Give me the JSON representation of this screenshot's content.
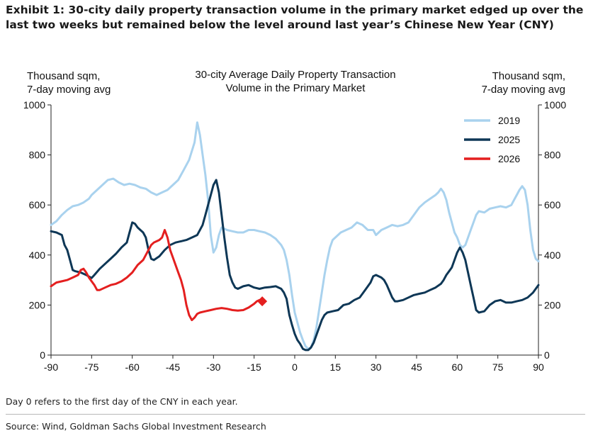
{
  "exhibit": {
    "title": "Exhibit 1: 30-city daily property transaction volume in the primary market edged up over the last two weeks but remained below the level around last year’s Chinese New Year (CNY)",
    "note": "Day 0 refers to the first day of the CNY in each year.",
    "source": "Source: Wind, Goldman Sachs Global Investment Research"
  },
  "chart_data": {
    "type": "line",
    "title": "30-city Average Daily Property Transaction Volume in the Primary Market",
    "title_lines": [
      "30-city Average Daily Property Transaction",
      "Volume in the Primary Market"
    ],
    "ylabel_left_lines": [
      "Thousand sqm,",
      "7-day moving avg"
    ],
    "ylabel_right_lines": [
      "Thousand sqm,",
      "7-day moving avg"
    ],
    "xlim": [
      -90,
      90
    ],
    "ylim": [
      0,
      1000
    ],
    "xticks": [
      -90,
      -75,
      -60,
      -45,
      -30,
      -15,
      0,
      15,
      30,
      45,
      60,
      75,
      90
    ],
    "xtick_labels": [
      "-90",
      "-75",
      "-60",
      "-45",
      "-30",
      "-15",
      "0",
      "15",
      "30",
      "45",
      "60",
      "75",
      "90"
    ],
    "yticks": [
      0,
      200,
      400,
      600,
      800,
      1000
    ],
    "ytick_labels": [
      "0",
      "200",
      "400",
      "600",
      "800",
      "1000"
    ],
    "legend_position": "top-right",
    "grid": false,
    "series": [
      {
        "name": "2019",
        "color": "#a9d2ee",
        "points": [
          [
            -90,
            520
          ],
          [
            -88,
            535
          ],
          [
            -86,
            560
          ],
          [
            -84,
            580
          ],
          [
            -82,
            595
          ],
          [
            -80,
            600
          ],
          [
            -78,
            610
          ],
          [
            -76,
            625
          ],
          [
            -75,
            640
          ],
          [
            -73,
            660
          ],
          [
            -71,
            680
          ],
          [
            -69,
            700
          ],
          [
            -67,
            705
          ],
          [
            -65,
            690
          ],
          [
            -63,
            680
          ],
          [
            -61,
            685
          ],
          [
            -59,
            680
          ],
          [
            -57,
            670
          ],
          [
            -55,
            665
          ],
          [
            -53,
            650
          ],
          [
            -51,
            640
          ],
          [
            -49,
            650
          ],
          [
            -47,
            660
          ],
          [
            -45,
            680
          ],
          [
            -43,
            700
          ],
          [
            -41,
            740
          ],
          [
            -39,
            780
          ],
          [
            -37,
            850
          ],
          [
            -36,
            930
          ],
          [
            -35,
            880
          ],
          [
            -34,
            800
          ],
          [
            -33,
            720
          ],
          [
            -32,
            620
          ],
          [
            -31,
            480
          ],
          [
            -30,
            410
          ],
          [
            -29,
            430
          ],
          [
            -28,
            480
          ],
          [
            -27,
            510
          ],
          [
            -25,
            500
          ],
          [
            -23,
            495
          ],
          [
            -21,
            490
          ],
          [
            -19,
            490
          ],
          [
            -17,
            500
          ],
          [
            -15,
            500
          ],
          [
            -13,
            495
          ],
          [
            -11,
            490
          ],
          [
            -9,
            480
          ],
          [
            -7,
            465
          ],
          [
            -5,
            440
          ],
          [
            -4,
            420
          ],
          [
            -3,
            380
          ],
          [
            -2,
            320
          ],
          [
            -1,
            240
          ],
          [
            0,
            170
          ],
          [
            1,
            130
          ],
          [
            2,
            90
          ],
          [
            3,
            60
          ],
          [
            4,
            35
          ],
          [
            5,
            25
          ],
          [
            6,
            30
          ],
          [
            7,
            60
          ],
          [
            8,
            110
          ],
          [
            9,
            180
          ],
          [
            10,
            250
          ],
          [
            11,
            320
          ],
          [
            12,
            380
          ],
          [
            13,
            430
          ],
          [
            14,
            460
          ],
          [
            15,
            470
          ],
          [
            17,
            490
          ],
          [
            19,
            500
          ],
          [
            21,
            510
          ],
          [
            23,
            530
          ],
          [
            25,
            520
          ],
          [
            27,
            500
          ],
          [
            29,
            500
          ],
          [
            30,
            480
          ],
          [
            32,
            500
          ],
          [
            34,
            510
          ],
          [
            36,
            520
          ],
          [
            38,
            515
          ],
          [
            40,
            520
          ],
          [
            42,
            530
          ],
          [
            44,
            560
          ],
          [
            46,
            590
          ],
          [
            48,
            610
          ],
          [
            50,
            625
          ],
          [
            52,
            640
          ],
          [
            53,
            650
          ],
          [
            54,
            665
          ],
          [
            55,
            650
          ],
          [
            56,
            620
          ],
          [
            57,
            570
          ],
          [
            58,
            530
          ],
          [
            59,
            490
          ],
          [
            60,
            470
          ],
          [
            61,
            440
          ],
          [
            62,
            430
          ],
          [
            63,
            440
          ],
          [
            64,
            470
          ],
          [
            65,
            500
          ],
          [
            66,
            530
          ],
          [
            67,
            560
          ],
          [
            68,
            575
          ],
          [
            70,
            570
          ],
          [
            72,
            585
          ],
          [
            74,
            590
          ],
          [
            76,
            595
          ],
          [
            78,
            590
          ],
          [
            80,
            600
          ],
          [
            81,
            620
          ],
          [
            82,
            640
          ],
          [
            83,
            660
          ],
          [
            84,
            675
          ],
          [
            85,
            660
          ],
          [
            86,
            600
          ],
          [
            87,
            500
          ],
          [
            88,
            420
          ],
          [
            89,
            385
          ],
          [
            90,
            375
          ]
        ]
      },
      {
        "name": "2025",
        "color": "#0e3756",
        "points": [
          [
            -90,
            495
          ],
          [
            -88,
            490
          ],
          [
            -86,
            480
          ],
          [
            -85,
            440
          ],
          [
            -84,
            420
          ],
          [
            -83,
            380
          ],
          [
            -82,
            340
          ],
          [
            -81,
            335
          ],
          [
            -79,
            330
          ],
          [
            -77,
            320
          ],
          [
            -75,
            308
          ],
          [
            -74,
            320
          ],
          [
            -72,
            345
          ],
          [
            -70,
            365
          ],
          [
            -68,
            385
          ],
          [
            -66,
            405
          ],
          [
            -64,
            430
          ],
          [
            -62,
            450
          ],
          [
            -61,
            490
          ],
          [
            -60,
            530
          ],
          [
            -59,
            525
          ],
          [
            -58,
            510
          ],
          [
            -57,
            500
          ],
          [
            -56,
            490
          ],
          [
            -55,
            470
          ],
          [
            -54,
            420
          ],
          [
            -53,
            385
          ],
          [
            -52,
            380
          ],
          [
            -50,
            395
          ],
          [
            -48,
            420
          ],
          [
            -46,
            440
          ],
          [
            -44,
            450
          ],
          [
            -42,
            455
          ],
          [
            -40,
            460
          ],
          [
            -38,
            470
          ],
          [
            -36,
            480
          ],
          [
            -34,
            520
          ],
          [
            -33,
            560
          ],
          [
            -32,
            600
          ],
          [
            -31,
            640
          ],
          [
            -30,
            680
          ],
          [
            -29,
            700
          ],
          [
            -28,
            650
          ],
          [
            -27,
            560
          ],
          [
            -26,
            470
          ],
          [
            -25,
            390
          ],
          [
            -24,
            320
          ],
          [
            -23,
            290
          ],
          [
            -22,
            270
          ],
          [
            -21,
            265
          ],
          [
            -19,
            275
          ],
          [
            -17,
            280
          ],
          [
            -15,
            270
          ],
          [
            -13,
            265
          ],
          [
            -11,
            270
          ],
          [
            -9,
            272
          ],
          [
            -7,
            275
          ],
          [
            -5,
            265
          ],
          [
            -4,
            250
          ],
          [
            -3,
            225
          ],
          [
            -2,
            160
          ],
          [
            -1,
            120
          ],
          [
            0,
            85
          ],
          [
            1,
            60
          ],
          [
            2,
            45
          ],
          [
            3,
            25
          ],
          [
            4,
            20
          ],
          [
            5,
            20
          ],
          [
            6,
            30
          ],
          [
            7,
            50
          ],
          [
            8,
            80
          ],
          [
            9,
            110
          ],
          [
            10,
            140
          ],
          [
            11,
            160
          ],
          [
            12,
            170
          ],
          [
            14,
            175
          ],
          [
            16,
            180
          ],
          [
            18,
            200
          ],
          [
            20,
            205
          ],
          [
            22,
            220
          ],
          [
            24,
            230
          ],
          [
            26,
            260
          ],
          [
            28,
            290
          ],
          [
            29,
            315
          ],
          [
            30,
            320
          ],
          [
            32,
            310
          ],
          [
            33,
            300
          ],
          [
            34,
            280
          ],
          [
            35,
            255
          ],
          [
            36,
            230
          ],
          [
            37,
            215
          ],
          [
            38,
            215
          ],
          [
            40,
            220
          ],
          [
            42,
            230
          ],
          [
            44,
            240
          ],
          [
            46,
            245
          ],
          [
            48,
            250
          ],
          [
            50,
            260
          ],
          [
            52,
            270
          ],
          [
            54,
            285
          ],
          [
            55,
            300
          ],
          [
            56,
            320
          ],
          [
            57,
            335
          ],
          [
            58,
            350
          ],
          [
            59,
            380
          ],
          [
            60,
            410
          ],
          [
            61,
            430
          ],
          [
            62,
            410
          ],
          [
            63,
            380
          ],
          [
            64,
            330
          ],
          [
            65,
            280
          ],
          [
            66,
            230
          ],
          [
            67,
            180
          ],
          [
            68,
            170
          ],
          [
            70,
            175
          ],
          [
            72,
            200
          ],
          [
            74,
            215
          ],
          [
            76,
            220
          ],
          [
            78,
            210
          ],
          [
            80,
            210
          ],
          [
            82,
            215
          ],
          [
            84,
            220
          ],
          [
            86,
            230
          ],
          [
            88,
            250
          ],
          [
            90,
            280
          ]
        ]
      },
      {
        "name": "2026",
        "color": "#e41f1f",
        "points": [
          [
            -90,
            275
          ],
          [
            -88,
            290
          ],
          [
            -86,
            295
          ],
          [
            -84,
            300
          ],
          [
            -82,
            310
          ],
          [
            -80,
            320
          ],
          [
            -79,
            340
          ],
          [
            -78,
            345
          ],
          [
            -77,
            330
          ],
          [
            -76,
            310
          ],
          [
            -75,
            295
          ],
          [
            -74,
            280
          ],
          [
            -73,
            260
          ],
          [
            -72,
            260
          ],
          [
            -70,
            270
          ],
          [
            -68,
            280
          ],
          [
            -66,
            285
          ],
          [
            -64,
            295
          ],
          [
            -62,
            310
          ],
          [
            -60,
            330
          ],
          [
            -58,
            360
          ],
          [
            -56,
            380
          ],
          [
            -55,
            400
          ],
          [
            -54,
            420
          ],
          [
            -53,
            440
          ],
          [
            -52,
            450
          ],
          [
            -51,
            455
          ],
          [
            -50,
            460
          ],
          [
            -49,
            470
          ],
          [
            -48,
            500
          ],
          [
            -47,
            470
          ],
          [
            -46,
            420
          ],
          [
            -45,
            390
          ],
          [
            -44,
            360
          ],
          [
            -43,
            330
          ],
          [
            -42,
            300
          ],
          [
            -41,
            260
          ],
          [
            -40,
            200
          ],
          [
            -39,
            160
          ],
          [
            -38,
            140
          ],
          [
            -37,
            150
          ],
          [
            -36,
            165
          ],
          [
            -35,
            170
          ],
          [
            -33,
            175
          ],
          [
            -31,
            180
          ],
          [
            -29,
            185
          ],
          [
            -27,
            188
          ],
          [
            -25,
            185
          ],
          [
            -23,
            180
          ],
          [
            -21,
            178
          ],
          [
            -19,
            180
          ],
          [
            -17,
            190
          ],
          [
            -15,
            205
          ],
          [
            -14,
            215
          ],
          [
            -13,
            220
          ],
          [
            -12,
            215
          ]
        ],
        "last_marker": {
          "x": -12,
          "y": 215,
          "shape": "diamond"
        }
      }
    ]
  }
}
